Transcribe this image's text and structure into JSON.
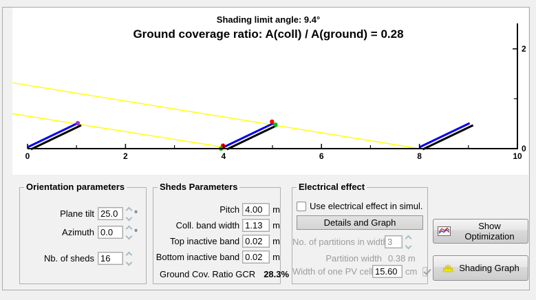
{
  "chart": {
    "title_line1": "Shading limit angle:   9.4°",
    "title_line2": "Ground coverage ratio: A(coll) / A(ground) = 0.28"
  },
  "chart_data": {
    "type": "line",
    "title": "Shading limit angle:   9.4°",
    "subtitle": "Ground coverage ratio: A(coll) / A(ground) = 0.28",
    "xlim": [
      0,
      10
    ],
    "ylim": [
      0,
      2.5
    ],
    "x_ticks": [
      0,
      2,
      4,
      6,
      8,
      10
    ],
    "x_minor_ticks": [
      1,
      3,
      5,
      7,
      9
    ],
    "y_ticks": [
      0,
      2
    ],
    "y_minor_ticks": [
      1
    ],
    "shed": {
      "pitch_m": 4.0,
      "band_width_m": 1.13,
      "tilt_deg": 25,
      "base_x": [
        0,
        4,
        8
      ]
    },
    "shading_limit_angle_deg": 9.4,
    "ground_coverage_ratio": 0.28,
    "shading_lines": [
      {
        "x1": -0.31,
        "y1": 1.32,
        "x2": 8.0,
        "y2": 0.0
      },
      {
        "x1": -0.31,
        "y1": 0.7,
        "x2": 4.0,
        "y2": 0.03
      }
    ],
    "markers": [
      {
        "x": 1.025,
        "y": 0.51,
        "color": "#9933cc"
      },
      {
        "x": 3.99,
        "y": 0.06,
        "color": "#ff0000"
      },
      {
        "x": 3.95,
        "y": 0.0,
        "color": "#00c000"
      },
      {
        "x": 4.99,
        "y": 0.54,
        "color": "#ff0000"
      },
      {
        "x": 5.06,
        "y": 0.48,
        "color": "#00c000"
      }
    ],
    "colors": {
      "collector": "#0000ee",
      "structure": "#000000",
      "shading_line": "#ffff00"
    }
  },
  "orientation": {
    "title": "Orientation parameters",
    "fields": [
      {
        "label": "Plane tilt",
        "value": "25.0",
        "unit": "°"
      },
      {
        "label": "Azimuth",
        "value": "0.0",
        "unit": "°"
      },
      {
        "label": "Nb. of sheds",
        "value": "16",
        "unit": ""
      }
    ]
  },
  "sheds": {
    "title": "Sheds Parameters",
    "fields": [
      {
        "label": "Pitch",
        "value": "4.00",
        "unit": "m"
      },
      {
        "label": "Coll. band width",
        "value": "1.13",
        "unit": "m"
      },
      {
        "label": "Top inactive band",
        "value": "0.02",
        "unit": "m"
      },
      {
        "label": "Bottom inactive band",
        "value": "0.02",
        "unit": "m"
      }
    ],
    "gcr_label": "Ground Cov. Ratio GCR",
    "gcr_value": "28.3%"
  },
  "electrical": {
    "title": "Electrical effect",
    "checkbox_label": "Use electrical effect in simul.",
    "checkbox_checked": false,
    "details_button": "Details and Graph",
    "partitions_label": "No. of partitions in width",
    "partitions_value": "3",
    "partition_width_label": "Partition width",
    "partition_width_value": "0.38 m",
    "pv_cell_label": "Width of one PV cell",
    "pv_cell_value": "15.60",
    "pv_cell_unit": "cm",
    "pv_cell_checkbox_checked": true
  },
  "actions": {
    "show_optimization": "Show Optimization",
    "shading_graph": "Shading Graph"
  }
}
